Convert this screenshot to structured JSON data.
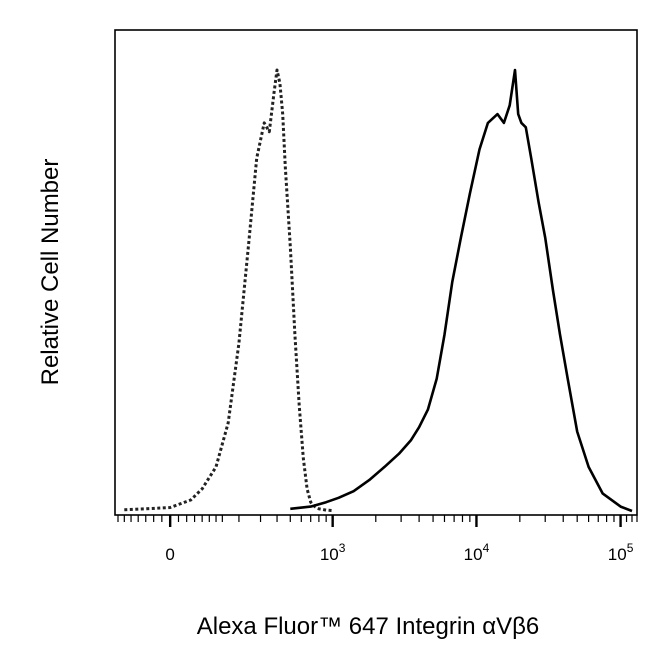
{
  "chart_data": {
    "type": "line",
    "title": "",
    "xlabel": "Alexa Fluor™ 647 Integrin αVβ6",
    "ylabel": "Relative Cell Number",
    "x_scale": "biexponential",
    "x_range": [
      -150,
      130000
    ],
    "y_range": [
      0,
      100
    ],
    "grid": false,
    "legend": "none",
    "x_ticks": [
      {
        "value": 0,
        "label": "0",
        "exp": ""
      },
      {
        "value": 1000,
        "label": "10",
        "exp": "3"
      },
      {
        "value": 10000,
        "label": "10",
        "exp": "4"
      },
      {
        "value": 100000,
        "label": "10",
        "exp": "5"
      }
    ],
    "series": [
      {
        "style": "dotted",
        "color": "#222222",
        "x": [
          -120,
          -60,
          0,
          50,
          80,
          120,
          160,
          200,
          240,
          280,
          320,
          350,
          380,
          400,
          420,
          440,
          460,
          500,
          540,
          580,
          620,
          660,
          700,
          750,
          800,
          900,
          1000
        ],
        "y": [
          0.3,
          0.5,
          0.8,
          2.5,
          5,
          10,
          20,
          38,
          60,
          80,
          88,
          86,
          95,
          100,
          97,
          90,
          78,
          60,
          40,
          24,
          12,
          5,
          2,
          1,
          0.5,
          0.2,
          0.1
        ]
      },
      {
        "style": "solid",
        "color": "#000000",
        "x": [
          500,
          700,
          900,
          1100,
          1400,
          1800,
          2300,
          2900,
          3500,
          4000,
          4600,
          5300,
          6000,
          6800,
          7800,
          9000,
          10500,
          12000,
          14000,
          15500,
          17000,
          18500,
          19500,
          20500,
          22000,
          24000,
          27000,
          30000,
          34000,
          38000,
          43000,
          50000,
          60000,
          75000,
          100000,
          120000
        ],
        "y": [
          0.5,
          1,
          2,
          3,
          4.5,
          7,
          10,
          13,
          16,
          19,
          23,
          30,
          40,
          52,
          62,
          72,
          82,
          88,
          90,
          88,
          92,
          100,
          90,
          88,
          87,
          80,
          70,
          62,
          50,
          40,
          30,
          18,
          10,
          4,
          1,
          0
        ]
      }
    ]
  }
}
